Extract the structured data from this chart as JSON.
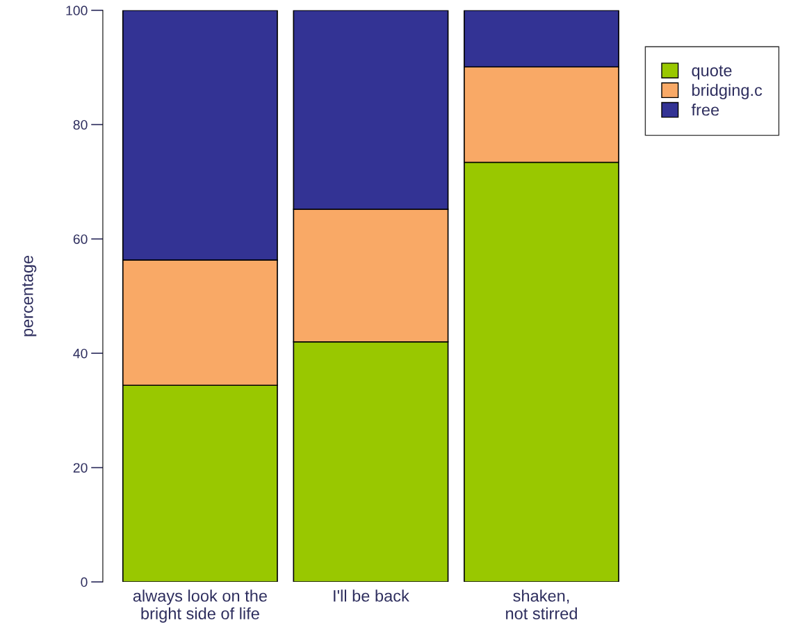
{
  "chart_data": {
    "type": "bar",
    "stacked": true,
    "ylabel": "percentage",
    "categories": [
      "always look on the\nbright side of life",
      "I'll be back",
      "shaken,\nnot stirred"
    ],
    "series": [
      {
        "name": "quote",
        "color": "#99c800",
        "values": [
          34.4,
          42.0,
          73.4
        ]
      },
      {
        "name": "bridging.c",
        "color": "#f9a966",
        "values": [
          21.9,
          23.2,
          16.7
        ]
      },
      {
        "name": "free",
        "color": "#333394",
        "values": [
          43.7,
          34.8,
          9.9
        ]
      }
    ],
    "ylim": [
      0,
      100
    ],
    "yticks": [
      0,
      20,
      40,
      60,
      80,
      100
    ],
    "grid": false,
    "legend": "top right"
  }
}
